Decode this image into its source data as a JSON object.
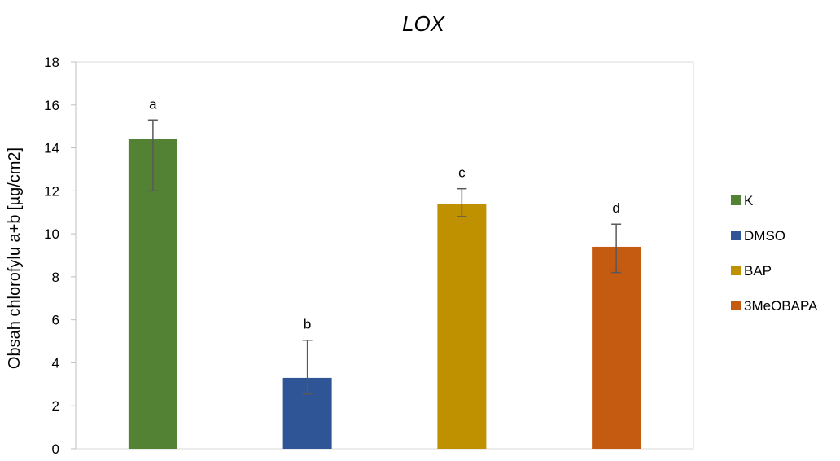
{
  "chart_data": {
    "type": "bar",
    "title": "LOX",
    "xlabel": "",
    "ylabel": "Obsah chlorofylu a+b [µg/cm2]",
    "ylim": [
      0,
      18
    ],
    "yticks": [
      0,
      2,
      4,
      6,
      8,
      10,
      12,
      14,
      16,
      18
    ],
    "grid": false,
    "legend_position": "right",
    "categories": [
      "K",
      "DMSO",
      "BAP",
      "3MeOBAPA"
    ],
    "values": [
      14.4,
      3.3,
      11.4,
      9.4
    ],
    "error_low": [
      12.0,
      2.55,
      10.8,
      8.2
    ],
    "error_high": [
      15.3,
      5.05,
      12.1,
      10.45
    ],
    "annotations": [
      "a",
      "b",
      "c",
      "d"
    ],
    "colors": [
      "#548235",
      "#2F5597",
      "#BF9000",
      "#C55A11"
    ]
  }
}
